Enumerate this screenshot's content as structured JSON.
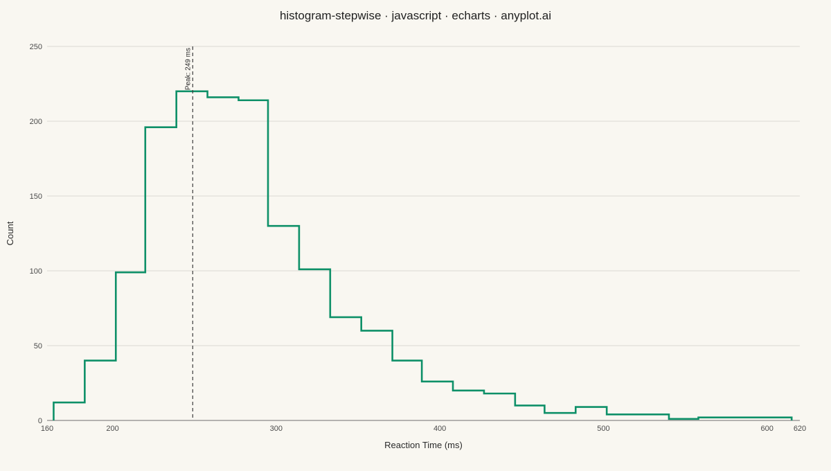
{
  "chart_data": {
    "type": "step",
    "title": "histogram-stepwise · javascript · echarts · anyplot.ai",
    "xlabel": "Reaction Time (ms)",
    "ylabel": "Count",
    "xlim": [
      160,
      620
    ],
    "ylim": [
      0,
      250
    ],
    "x_ticks": [
      160,
      200,
      300,
      400,
      500,
      600,
      620
    ],
    "y_ticks": [
      0,
      50,
      100,
      150,
      200,
      250
    ],
    "grid": true,
    "line_color": "#0E9068",
    "bin_edges": [
      164,
      183,
      202,
      220,
      239,
      258,
      277,
      295,
      314,
      333,
      352,
      371,
      389,
      408,
      427,
      446,
      464,
      483,
      502,
      521,
      540,
      558,
      577,
      596,
      615
    ],
    "counts": [
      12,
      40,
      99,
      196,
      220,
      216,
      214,
      130,
      101,
      69,
      60,
      40,
      26,
      20,
      18,
      10,
      5,
      9,
      4,
      4,
      1,
      2,
      2,
      2
    ],
    "peak_line": {
      "x": 249,
      "label": "Peak: 249 ms"
    }
  }
}
